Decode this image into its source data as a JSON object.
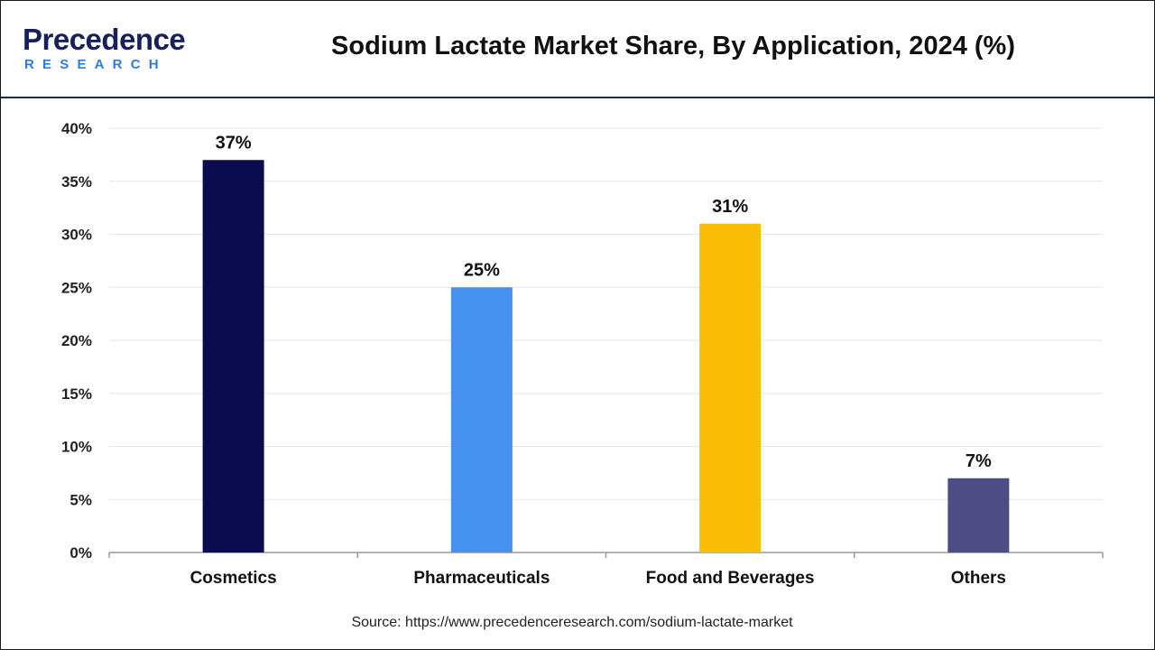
{
  "header": {
    "logo_main": "Precedence",
    "logo_sub": "RESEARCH",
    "title": "Sodium Lactate Market Share, By Application, 2024 (%)"
  },
  "footer": {
    "source": "Source: https://www.precedenceresearch.com/sodium-lactate-market"
  },
  "chart_data": {
    "type": "bar",
    "title": "Sodium Lactate Market Share, By Application, 2024 (%)",
    "categories": [
      "Cosmetics",
      "Pharmaceuticals",
      "Food and Beverages",
      "Others"
    ],
    "values": [
      37,
      25,
      31,
      7
    ],
    "value_labels": [
      "37%",
      "25%",
      "31%",
      "7%"
    ],
    "colors": [
      "#0b0b4f",
      "#4693ef",
      "#fbbe07",
      "#4d4d85"
    ],
    "ylim": [
      0,
      40
    ],
    "yticks": [
      0,
      5,
      10,
      15,
      20,
      25,
      30,
      35,
      40
    ],
    "ytick_labels": [
      "0%",
      "5%",
      "10%",
      "15%",
      "20%",
      "25%",
      "30%",
      "35%",
      "40%"
    ],
    "xlabel": "",
    "ylabel": "",
    "grid": true,
    "legend": "none"
  }
}
